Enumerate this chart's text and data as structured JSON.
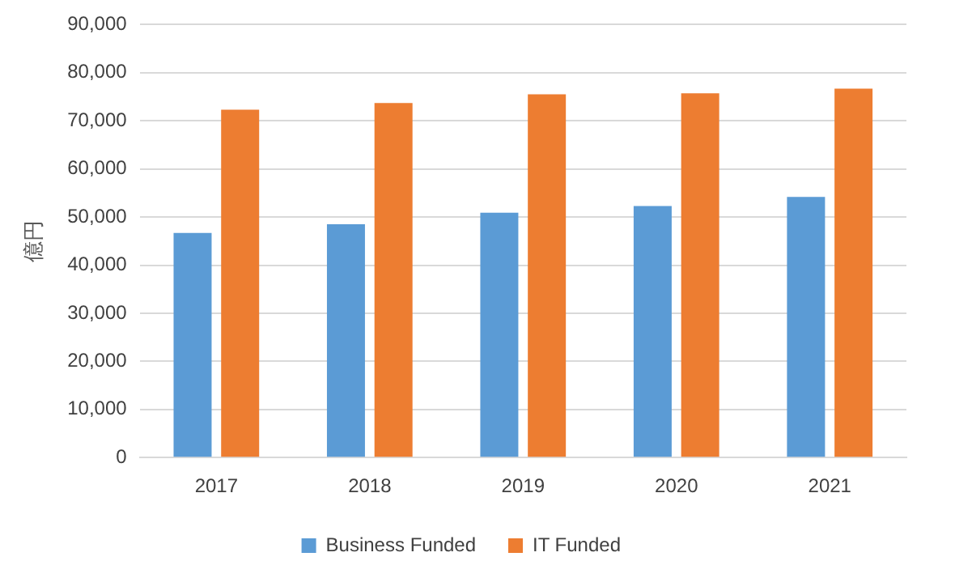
{
  "chart_data": {
    "type": "bar",
    "ylabel": "億円",
    "categories": [
      "2017",
      "2018",
      "2019",
      "2020",
      "2021"
    ],
    "series": [
      {
        "name": "Business Funded",
        "color": "#5b9bd5",
        "values": [
          46700,
          48500,
          50900,
          52300,
          54200
        ]
      },
      {
        "name": "IT Funded",
        "color": "#ed7d31",
        "values": [
          72300,
          73700,
          75500,
          75700,
          76700
        ]
      }
    ],
    "ylim": [
      0,
      90000
    ],
    "yticks": [
      {
        "value": 0,
        "label": "0"
      },
      {
        "value": 10000,
        "label": "10,000"
      },
      {
        "value": 20000,
        "label": "20,000"
      },
      {
        "value": 30000,
        "label": "30,000"
      },
      {
        "value": 40000,
        "label": "40,000"
      },
      {
        "value": 50000,
        "label": "50,000"
      },
      {
        "value": 60000,
        "label": "60,000"
      },
      {
        "value": 70000,
        "label": "70,000"
      },
      {
        "value": 80000,
        "label": "80,000"
      },
      {
        "value": 90000,
        "label": "90,000"
      }
    ],
    "grid": "y",
    "legend": "bottom"
  }
}
